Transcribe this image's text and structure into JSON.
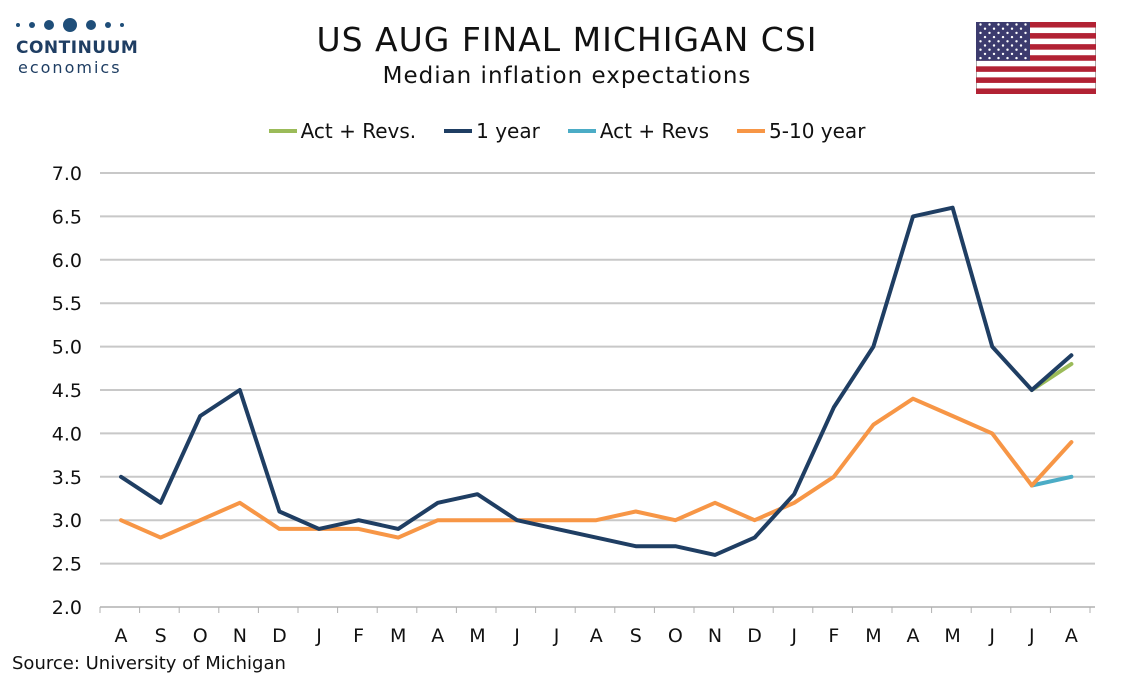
{
  "brand": {
    "name": "CONTINUUM",
    "tagline": "economics",
    "color": "#1f3e63",
    "dot_color": "#1f4e79"
  },
  "header": {
    "title": "US AUG FINAL MICHIGAN CSI",
    "subtitle": "Median inflation expectations"
  },
  "flag_icon": "us-flag-icon",
  "source": "Source: University of Michigan",
  "chart_data": {
    "type": "line",
    "title": "US AUG FINAL MICHIGAN CSI",
    "subtitle": "Median inflation expectations",
    "xlabel": "",
    "ylabel": "",
    "categories": [
      "A",
      "S",
      "O",
      "N",
      "D",
      "J",
      "F",
      "M",
      "A",
      "M",
      "J",
      "J",
      "A",
      "S",
      "O",
      "N",
      "D",
      "J",
      "F",
      "M",
      "A",
      "M",
      "J",
      "J",
      "A"
    ],
    "ylim": [
      2.0,
      7.0
    ],
    "yticks": [
      "2.0",
      "2.5",
      "3.0",
      "3.5",
      "4.0",
      "4.5",
      "5.0",
      "5.5",
      "6.0",
      "6.5",
      "7.0"
    ],
    "grid": true,
    "legend_position": "top",
    "series": [
      {
        "name": "Act + Revs.",
        "color": "#9bbb59",
        "values": [
          null,
          null,
          null,
          null,
          null,
          null,
          null,
          null,
          null,
          null,
          null,
          null,
          null,
          null,
          null,
          null,
          null,
          null,
          null,
          null,
          null,
          null,
          null,
          4.5,
          4.8
        ]
      },
      {
        "name": "1 year",
        "color": "#1f3e63",
        "values": [
          3.5,
          3.2,
          4.2,
          4.5,
          3.1,
          2.9,
          3.0,
          2.9,
          3.2,
          3.3,
          3.0,
          2.9,
          2.8,
          2.7,
          2.7,
          2.6,
          2.8,
          3.3,
          4.3,
          5.0,
          6.5,
          6.6,
          5.0,
          4.5,
          4.9
        ]
      },
      {
        "name": "Act + Revs",
        "color": "#4bacc6",
        "values": [
          null,
          null,
          null,
          null,
          null,
          null,
          null,
          null,
          null,
          null,
          null,
          null,
          null,
          null,
          null,
          null,
          null,
          null,
          null,
          null,
          null,
          null,
          null,
          3.4,
          3.5
        ]
      },
      {
        "name": "5-10 year",
        "color": "#f79646",
        "values": [
          3.0,
          2.8,
          3.0,
          3.2,
          2.9,
          2.9,
          2.9,
          2.8,
          3.0,
          3.0,
          3.0,
          3.0,
          3.0,
          3.1,
          3.0,
          3.2,
          3.0,
          3.2,
          3.5,
          4.1,
          4.4,
          4.2,
          4.0,
          3.4,
          3.9
        ]
      }
    ],
    "draw_order": [
      0,
      2,
      3,
      1
    ]
  }
}
